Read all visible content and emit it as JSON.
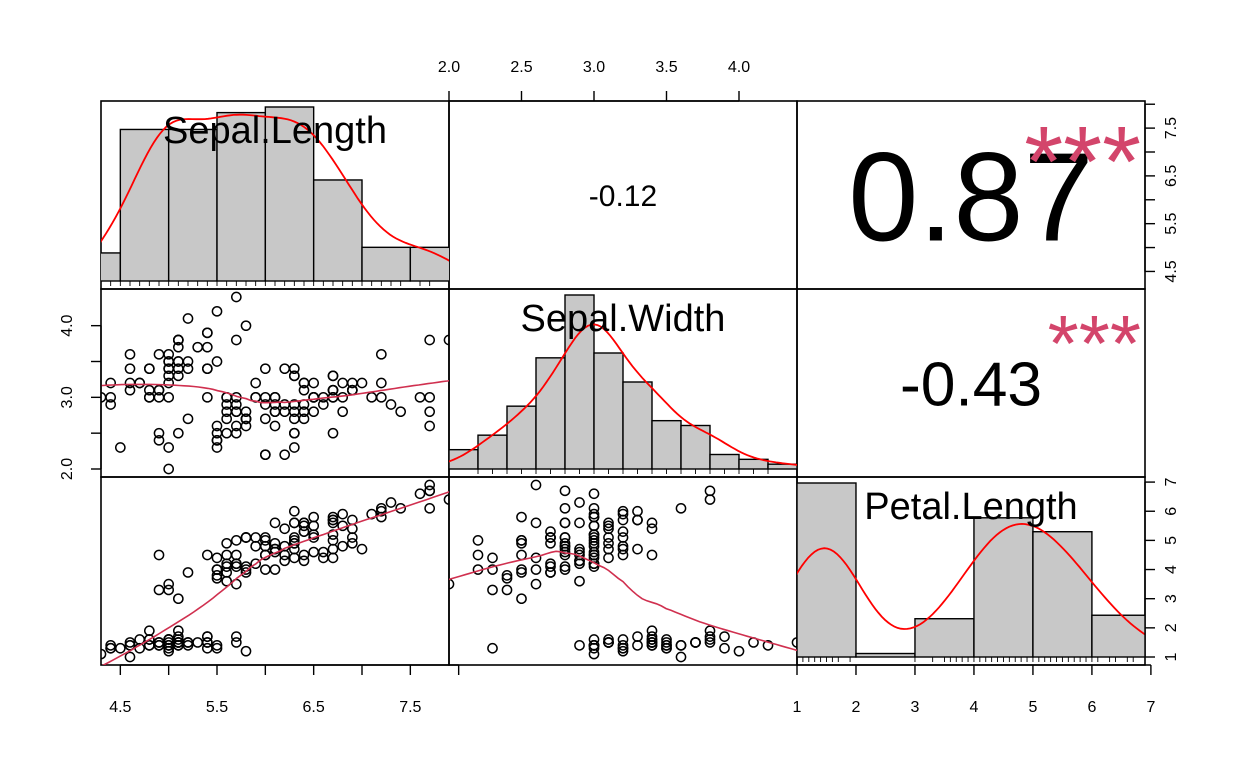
{
  "chart_data": {
    "type": "scatter",
    "variables": [
      "Sepal.Length",
      "Sepal.Width",
      "Petal.Length"
    ],
    "ticks": {
      "Sepal.Length": [
        "4.5",
        "5.5",
        "6.5",
        "7.5"
      ],
      "Sepal.Width": [
        "2.0",
        "2.5",
        "3.0",
        "3.5",
        "4.0"
      ],
      "Sepal.Width.left": [
        "2.0",
        "3.0",
        "4.0"
      ],
      "Petal.Length": [
        "1",
        "2",
        "3",
        "4",
        "5",
        "6",
        "7"
      ],
      "Sepal.Length.right": [
        "4.5",
        "5.5",
        "6.5",
        "7.5"
      ],
      "Sepal.Length.right.minor": [
        "5.0",
        "6.0",
        "7.0",
        "8.0"
      ]
    },
    "ranges": {
      "Sepal.Length": [
        4.3,
        7.9
      ],
      "Sepal.Width": [
        2.0,
        4.4
      ],
      "Petal.Length": [
        1.0,
        6.9
      ]
    },
    "correlations": [
      {
        "pair": [
          "Sepal.Length",
          "Sepal.Width"
        ],
        "r": "-0.12",
        "stars": ""
      },
      {
        "pair": [
          "Sepal.Length",
          "Petal.Length"
        ],
        "r": "0.87",
        "stars": "***"
      },
      {
        "pair": [
          "Sepal.Width",
          "Petal.Length"
        ],
        "r": "-0.43",
        "stars": "***"
      }
    ],
    "histograms": {
      "Sepal.Length": {
        "breaks": [
          4.0,
          4.5,
          5.0,
          5.5,
          6.0,
          6.5,
          7.0,
          7.5,
          8.0
        ],
        "counts": [
          5,
          27,
          27,
          30,
          31,
          18,
          6,
          6
        ]
      },
      "Sepal.Width": {
        "breaks": [
          2.0,
          2.2,
          2.4,
          2.6,
          2.8,
          3.0,
          3.2,
          3.4,
          3.6,
          3.8,
          4.0,
          4.2,
          4.4
        ],
        "counts": [
          4,
          7,
          13,
          23,
          36,
          24,
          18,
          10,
          9,
          3,
          2,
          1
        ]
      },
      "Petal.Length": {
        "breaks": [
          1,
          2,
          3,
          4,
          5,
          6,
          7
        ],
        "counts": [
          50,
          1,
          11,
          40,
          36,
          12
        ]
      }
    },
    "observations": {
      "Sepal.Length": [
        5.1,
        4.9,
        4.7,
        4.6,
        5.0,
        5.4,
        4.6,
        5.0,
        4.4,
        4.9,
        5.4,
        4.8,
        4.8,
        4.3,
        5.8,
        5.7,
        5.4,
        5.1,
        5.7,
        5.1,
        5.4,
        5.1,
        4.6,
        5.1,
        4.8,
        5.0,
        5.0,
        5.2,
        5.2,
        4.7,
        4.8,
        5.4,
        5.2,
        5.5,
        4.9,
        5.0,
        5.5,
        4.9,
        4.4,
        5.1,
        5.0,
        4.5,
        4.4,
        5.0,
        5.1,
        4.8,
        5.1,
        4.6,
        5.3,
        5.0,
        7.0,
        6.4,
        6.9,
        5.5,
        6.5,
        5.7,
        6.3,
        4.9,
        6.6,
        5.2,
        5.0,
        5.9,
        6.0,
        6.1,
        5.6,
        6.7,
        5.6,
        5.8,
        6.2,
        5.6,
        5.9,
        6.1,
        6.3,
        6.1,
        6.4,
        6.6,
        6.8,
        6.7,
        6.0,
        5.7,
        5.5,
        5.5,
        5.8,
        6.0,
        5.4,
        6.0,
        6.7,
        6.3,
        5.6,
        5.5,
        5.5,
        6.1,
        5.8,
        5.0,
        5.6,
        5.7,
        5.7,
        6.2,
        5.1,
        5.7,
        6.3,
        5.8,
        7.1,
        6.3,
        6.5,
        7.6,
        4.9,
        7.3,
        6.7,
        7.2,
        6.5,
        6.4,
        6.8,
        5.7,
        5.8,
        6.4,
        6.5,
        7.7,
        7.7,
        6.0,
        6.9,
        5.6,
        7.7,
        6.3,
        6.7,
        7.2,
        6.2,
        6.1,
        6.4,
        7.2,
        7.4,
        7.9,
        6.4,
        6.3,
        6.1,
        7.7,
        6.3,
        6.4,
        6.0,
        6.9,
        6.7,
        6.9,
        5.8,
        6.8,
        6.7,
        6.7,
        6.3,
        6.5,
        6.2,
        5.9
      ],
      "Sepal.Width": [
        3.5,
        3.0,
        3.2,
        3.1,
        3.6,
        3.9,
        3.4,
        3.4,
        2.9,
        3.1,
        3.7,
        3.4,
        3.0,
        3.0,
        4.0,
        4.4,
        3.9,
        3.5,
        3.8,
        3.8,
        3.4,
        3.7,
        3.6,
        3.3,
        3.4,
        3.0,
        3.4,
        3.5,
        3.4,
        3.2,
        3.1,
        3.4,
        4.1,
        4.2,
        3.1,
        3.2,
        3.5,
        3.6,
        3.0,
        3.4,
        3.5,
        2.3,
        3.2,
        3.5,
        3.8,
        3.0,
        3.8,
        3.2,
        3.7,
        3.3,
        3.2,
        3.2,
        3.1,
        2.3,
        2.8,
        2.8,
        3.3,
        2.4,
        2.9,
        2.7,
        2.0,
        3.0,
        2.2,
        2.9,
        2.9,
        3.1,
        3.0,
        2.7,
        2.2,
        2.5,
        3.2,
        2.8,
        2.5,
        2.8,
        2.9,
        3.0,
        2.8,
        3.0,
        2.9,
        2.6,
        2.4,
        2.4,
        2.7,
        2.7,
        3.0,
        3.4,
        3.1,
        2.3,
        3.0,
        2.5,
        2.6,
        3.0,
        2.6,
        2.3,
        2.7,
        3.0,
        2.9,
        2.9,
        2.5,
        2.8,
        3.3,
        2.7,
        3.0,
        2.9,
        3.0,
        3.0,
        2.5,
        2.9,
        2.5,
        3.6,
        3.2,
        2.7,
        3.0,
        2.5,
        2.8,
        3.2,
        3.0,
        3.8,
        2.6,
        2.2,
        3.2,
        2.8,
        2.8,
        2.7,
        3.3,
        3.2,
        2.8,
        3.0,
        2.8,
        3.0,
        2.8,
        3.8,
        2.8,
        2.8,
        2.6,
        3.0,
        3.4,
        3.1,
        3.0,
        3.1,
        3.1,
        3.1,
        2.7,
        3.2,
        3.3,
        3.0,
        2.5,
        3.0,
        3.4,
        3.0
      ],
      "Petal.Length": [
        1.4,
        1.4,
        1.3,
        1.5,
        1.4,
        1.7,
        1.4,
        1.5,
        1.4,
        1.5,
        1.5,
        1.6,
        1.4,
        1.1,
        1.2,
        1.5,
        1.3,
        1.4,
        1.7,
        1.5,
        1.7,
        1.5,
        1.0,
        1.7,
        1.9,
        1.6,
        1.6,
        1.5,
        1.4,
        1.6,
        1.6,
        1.5,
        1.5,
        1.4,
        1.5,
        1.2,
        1.3,
        1.4,
        1.3,
        1.5,
        1.3,
        1.3,
        1.3,
        1.6,
        1.9,
        1.4,
        1.6,
        1.4,
        1.5,
        1.4,
        4.7,
        4.5,
        4.9,
        4.0,
        4.6,
        4.5,
        4.7,
        3.3,
        4.6,
        3.9,
        3.5,
        4.2,
        4.0,
        4.7,
        3.6,
        4.4,
        4.5,
        4.1,
        4.5,
        3.9,
        4.8,
        4.0,
        4.9,
        4.7,
        4.3,
        4.4,
        4.8,
        5.0,
        4.5,
        3.5,
        3.8,
        3.7,
        3.9,
        5.1,
        4.5,
        4.5,
        4.7,
        4.4,
        4.1,
        4.0,
        4.4,
        4.6,
        4.0,
        3.3,
        4.2,
        4.2,
        4.2,
        4.3,
        3.0,
        4.1,
        6.0,
        5.1,
        5.9,
        5.6,
        5.8,
        6.6,
        4.5,
        6.3,
        5.8,
        6.1,
        5.1,
        5.3,
        5.5,
        5.0,
        5.1,
        5.3,
        5.5,
        6.7,
        6.9,
        5.0,
        5.7,
        4.9,
        6.7,
        4.9,
        5.7,
        6.0,
        4.8,
        4.9,
        5.6,
        5.8,
        6.1,
        6.4,
        5.6,
        5.1,
        5.6,
        6.1,
        5.6,
        5.5,
        4.8,
        5.4,
        5.6,
        5.1,
        5.1,
        5.9,
        5.7,
        5.2,
        5.0,
        5.2,
        5.4,
        5.1
      ]
    }
  }
}
